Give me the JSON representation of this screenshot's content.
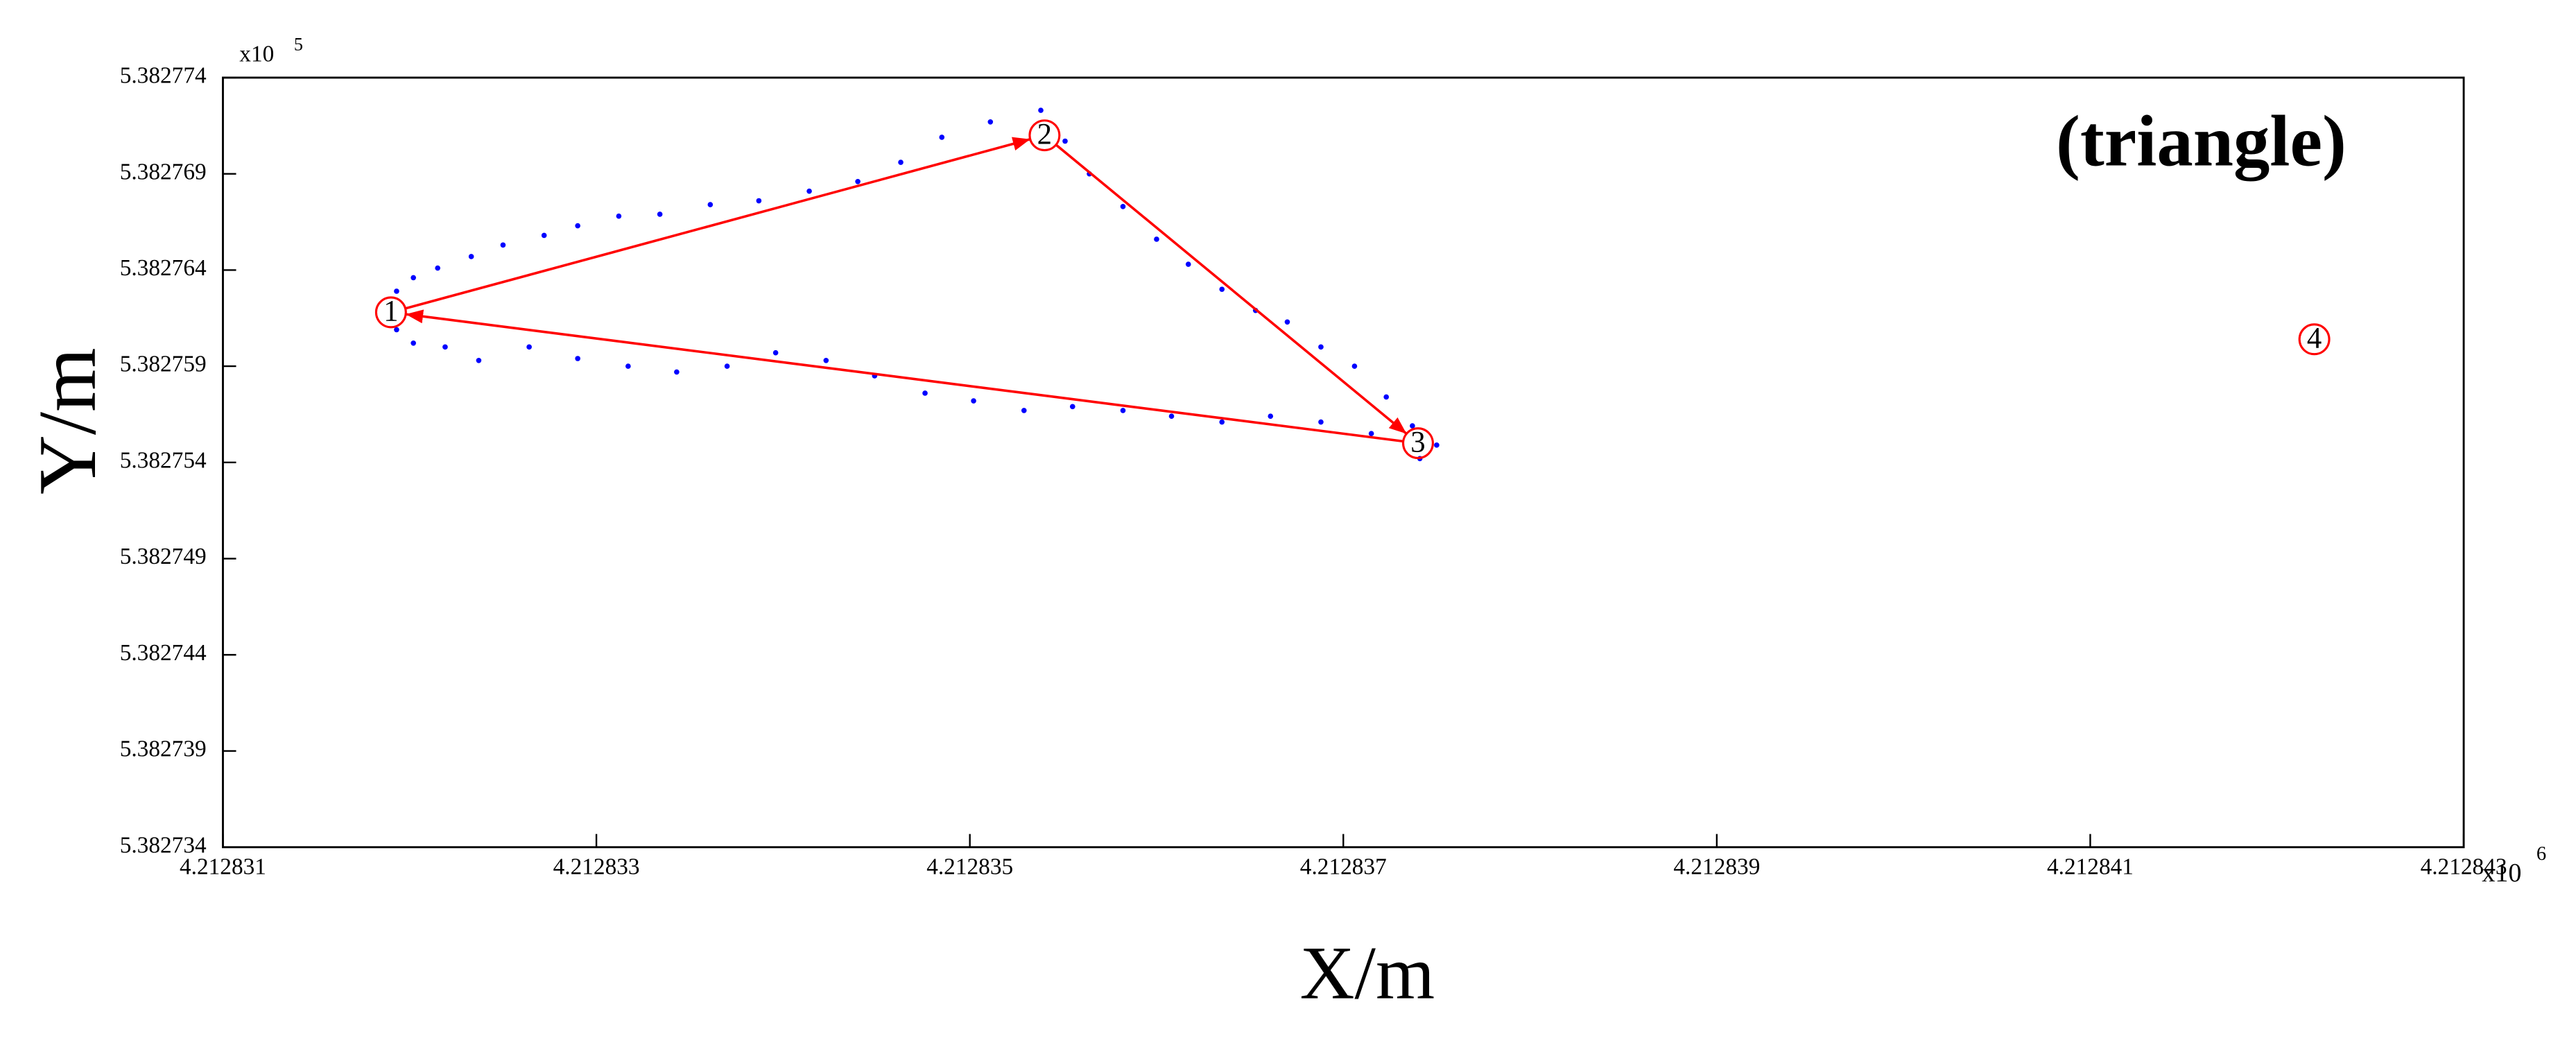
{
  "chart_data": {
    "type": "scatter",
    "title": "(triangle)",
    "x_label": "X/m",
    "y_label": "Y/m",
    "x_scale_label": "x10",
    "x_scale_exponent": "6",
    "y_scale_label": "x10",
    "y_scale_exponent": "5",
    "xlim": [
      4.212831,
      4.212843
    ],
    "xticks": [
      4.212831,
      4.212833,
      4.212835,
      4.212837,
      4.212839,
      4.212841,
      4.212843
    ],
    "ylim": [
      5.382734,
      5.382774
    ],
    "yticks": [
      5.382734,
      5.382739,
      5.382744,
      5.382749,
      5.382754,
      5.382759,
      5.382764,
      5.382769,
      5.382774
    ],
    "series": [
      {
        "color": "#0000ff",
        "style": "dots",
        "x": [
          4.21283193,
          4.21283202,
          4.21283215,
          4.21283233,
          4.2128325,
          4.21283272,
          4.2128329,
          4.21283312,
          4.21283334,
          4.21283361,
          4.21283387,
          4.21283414,
          4.2128344,
          4.21283463,
          4.21283485,
          4.21283511,
          4.21283538,
          4.21283551,
          4.21283564,
          4.21283582,
          4.212836,
          4.21283617,
          4.21283635,
          4.21283653,
          4.2128367,
          4.21283688,
          4.21283706,
          4.21283723,
          4.21283737,
          4.2128375,
          4.21283741,
          4.21283715,
          4.21283688,
          4.21283661,
          4.21283635,
          4.21283608,
          4.21283582,
          4.21283555,
          4.21283529,
          4.21283502,
          4.21283476,
          4.21283449,
          4.21283423,
          4.21283396,
          4.2128337,
          4.21283343,
          4.21283317,
          4.2128329,
          4.21283264,
          4.21283237,
          4.21283219,
          4.21283202,
          4.21283193
        ],
        "values": [
          5.3827629,
          5.3827636,
          5.3827641,
          5.3827647,
          5.3827653,
          5.3827658,
          5.3827663,
          5.3827668,
          5.3827669,
          5.3827674,
          5.3827676,
          5.3827681,
          5.3827686,
          5.3827696,
          5.3827709,
          5.3827717,
          5.3827723,
          5.3827707,
          5.382769,
          5.3827673,
          5.3827656,
          5.3827643,
          5.382763,
          5.3827619,
          5.3827613,
          5.38276,
          5.382759,
          5.3827574,
          5.3827559,
          5.3827549,
          5.3827542,
          5.3827555,
          5.3827561,
          5.3827564,
          5.3827561,
          5.3827564,
          5.3827567,
          5.3827569,
          5.3827567,
          5.3827572,
          5.3827576,
          5.3827585,
          5.3827593,
          5.3827597,
          5.382759,
          5.3827587,
          5.382759,
          5.3827594,
          5.38276,
          5.3827593,
          5.38276,
          5.3827602,
          5.3827609
        ]
      },
      {
        "color": "#ff0000",
        "style": "arrows",
        "x": [
          4.2128319,
          4.2128354,
          4.2128374,
          4.2128319
        ],
        "values": [
          5.3827618,
          5.382771,
          5.382755,
          5.3827618
        ]
      }
    ],
    "marker_color": "#ff0000",
    "markers": [
      {
        "label": "1",
        "x": 4.2128319,
        "y": 5.3827618
      },
      {
        "label": "2",
        "x": 4.2128354,
        "y": 5.382771
      },
      {
        "label": "3",
        "x": 4.2128374,
        "y": 5.382755
      },
      {
        "label": "4",
        "x": 4.2128422,
        "y": 5.3827604
      }
    ]
  }
}
